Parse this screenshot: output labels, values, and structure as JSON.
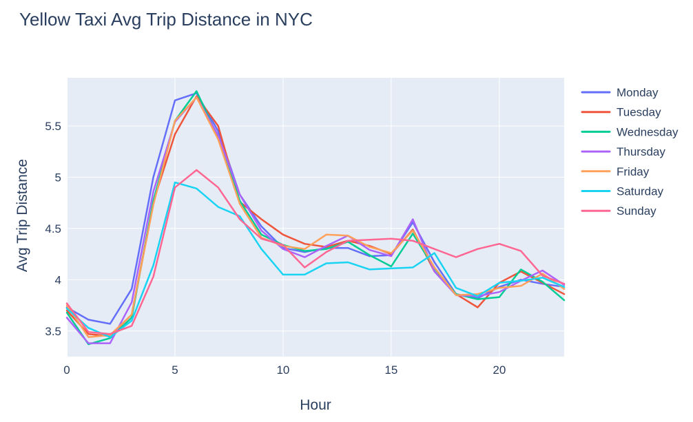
{
  "chart_data": {
    "type": "line",
    "title": "Yellow Taxi Avg Trip Distance in NYC",
    "xlabel": "Hour",
    "ylabel": "Avg Trip Distance",
    "x": [
      0,
      1,
      2,
      3,
      4,
      5,
      6,
      7,
      8,
      9,
      10,
      11,
      12,
      13,
      14,
      15,
      16,
      17,
      18,
      19,
      20,
      21,
      22,
      23
    ],
    "xlim": [
      0,
      23
    ],
    "ylim": [
      3.25,
      5.97
    ],
    "x_ticks": [
      0,
      5,
      10,
      15,
      20
    ],
    "x_tick_labels": [
      "0",
      "5",
      "10",
      "15",
      "20"
    ],
    "y_ticks": [
      3.5,
      4,
      4.5,
      5,
      5.5
    ],
    "y_tick_labels": [
      "3.5",
      "4",
      "4.5",
      "5",
      "5.5"
    ],
    "grid": true,
    "legend_position": "right",
    "plot_background": "#e5ecf6",
    "series": [
      {
        "name": "Monday",
        "color": "#636efa",
        "values": [
          3.73,
          3.61,
          3.57,
          3.91,
          5.0,
          5.75,
          5.82,
          5.45,
          4.83,
          4.52,
          4.31,
          4.27,
          4.31,
          4.31,
          4.23,
          4.24,
          4.56,
          4.17,
          3.86,
          3.82,
          3.93,
          4.0,
          3.96,
          3.93
        ]
      },
      {
        "name": "Tuesday",
        "color": "#ef553b",
        "values": [
          3.7,
          3.47,
          3.45,
          3.66,
          4.76,
          5.42,
          5.79,
          5.5,
          4.76,
          4.59,
          4.44,
          4.35,
          4.32,
          4.38,
          4.33,
          4.25,
          4.49,
          4.08,
          3.86,
          3.73,
          3.97,
          4.08,
          3.97,
          3.86
        ]
      },
      {
        "name": "Wednesday",
        "color": "#00cc96",
        "values": [
          3.68,
          3.37,
          3.43,
          3.63,
          4.77,
          5.55,
          5.84,
          5.39,
          4.77,
          4.44,
          4.34,
          4.28,
          4.3,
          4.37,
          4.24,
          4.13,
          4.45,
          4.11,
          3.86,
          3.81,
          3.83,
          4.1,
          3.98,
          3.8
        ]
      },
      {
        "name": "Thursday",
        "color": "#ab63fa",
        "values": [
          3.63,
          3.38,
          3.38,
          3.78,
          4.86,
          5.54,
          5.78,
          5.41,
          4.83,
          4.48,
          4.3,
          4.22,
          4.33,
          4.43,
          4.29,
          4.23,
          4.59,
          4.08,
          3.85,
          3.84,
          3.88,
          3.99,
          4.09,
          3.95
        ]
      },
      {
        "name": "Friday",
        "color": "#ffa15a",
        "values": [
          3.75,
          3.44,
          3.46,
          3.66,
          4.73,
          5.55,
          5.78,
          5.37,
          4.74,
          4.41,
          4.33,
          4.3,
          4.44,
          4.43,
          4.32,
          4.26,
          4.48,
          4.12,
          3.85,
          3.86,
          3.92,
          3.94,
          4.06,
          3.91
        ]
      },
      {
        "name": "Saturday",
        "color": "#19d3f3",
        "values": [
          3.72,
          3.53,
          3.44,
          3.6,
          4.14,
          4.95,
          4.89,
          4.71,
          4.62,
          4.3,
          4.05,
          4.05,
          4.16,
          4.17,
          4.1,
          4.11,
          4.12,
          4.26,
          3.92,
          3.84,
          3.97,
          3.99,
          4.02,
          3.93
        ]
      },
      {
        "name": "Sunday",
        "color": "#ff6692",
        "values": [
          3.77,
          3.49,
          3.47,
          3.55,
          4.03,
          4.9,
          5.07,
          4.9,
          4.59,
          4.4,
          4.34,
          4.12,
          4.27,
          4.38,
          4.39,
          4.4,
          4.38,
          4.3,
          4.22,
          4.3,
          4.35,
          4.28,
          4.04,
          3.96
        ]
      }
    ]
  }
}
